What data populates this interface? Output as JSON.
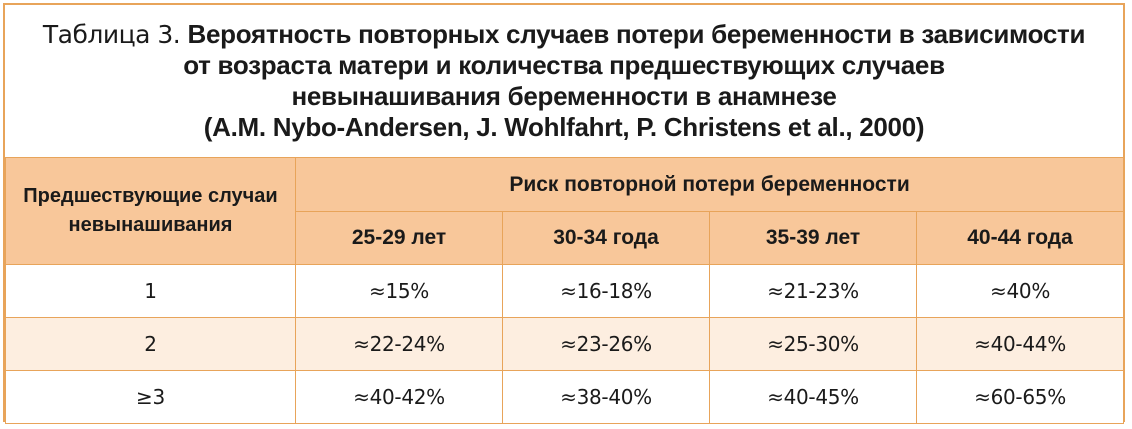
{
  "caption": {
    "prefix": "Таблица 3.",
    "line1": "Вероятность повторных случаев потери беременности в зависимости",
    "line2": "от возраста матери и количества предшествующих случаев",
    "line3": "невынашивания беременности в анамнезе",
    "line4": "(A.M. Nybo-Andersen, J. Wohlfahrt, P. Christens et al., 2000)"
  },
  "table": {
    "row_header": "Предшествующие случаи невынашивания",
    "group_header": "Риск повторной потери беременности",
    "columns": [
      "25-29 лет",
      "30-34 года",
      "35-39 лет",
      "40-44 года"
    ],
    "rows": [
      {
        "prior": "1",
        "values": [
          "≈15%",
          "≈16-18%",
          "≈21-23%",
          "≈40%"
        ]
      },
      {
        "prior": "2",
        "values": [
          "≈22-24%",
          "≈23-26%",
          "≈25-30%",
          "≈40-44%"
        ]
      },
      {
        "prior": "≥3",
        "values": [
          "≈40-42%",
          "≈38-40%",
          "≈40-45%",
          "≈60-65%"
        ]
      }
    ]
  },
  "colors": {
    "border": "#e8a45a",
    "header_bg": "#f8c79a",
    "alt_row_bg": "#fdeee0"
  }
}
